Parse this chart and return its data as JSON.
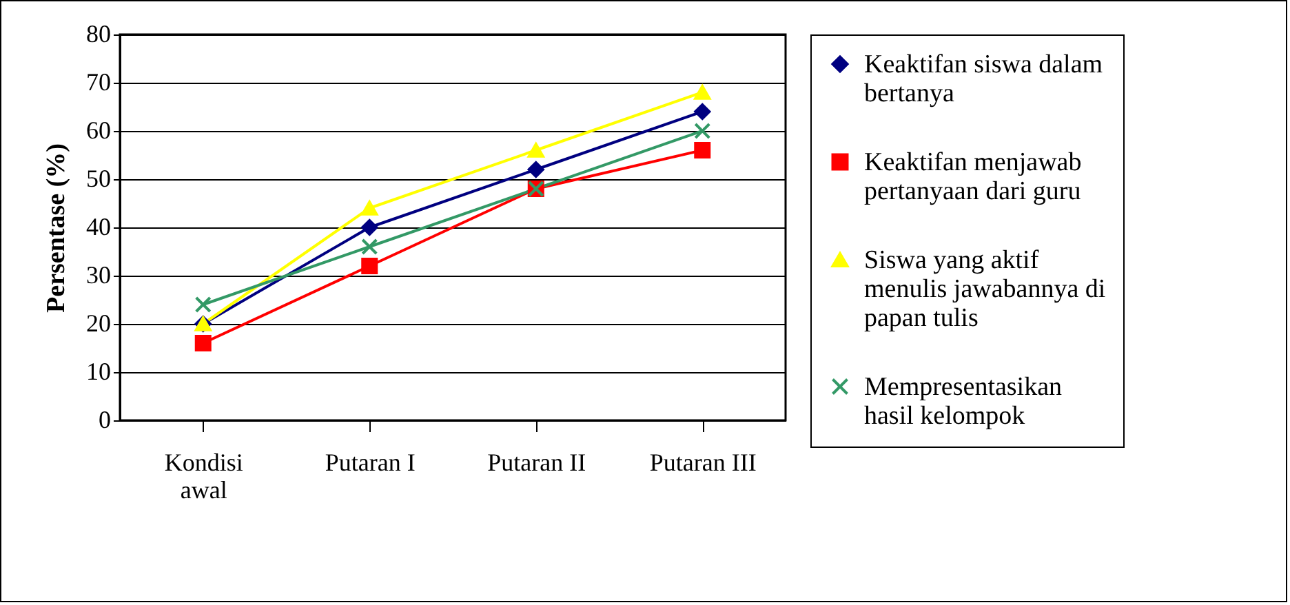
{
  "chart_data": {
    "type": "line",
    "ylabel": "Persentase (%)",
    "categories": [
      "Kondisi awal",
      "Putaran I",
      "Putaran II",
      "Putaran III"
    ],
    "series": [
      {
        "name": "Keaktifan siswa dalam bertanya",
        "color": "#000080",
        "marker": "diamond",
        "values": [
          20,
          40,
          52,
          64
        ]
      },
      {
        "name": "Keaktifan menjawab pertanyaan dari guru",
        "color": "#ff0000",
        "marker": "square",
        "values": [
          16,
          32,
          48,
          56
        ]
      },
      {
        "name": "Siswa yang aktif menulis jawabannya di papan tulis",
        "color": "#ffff00",
        "marker": "triangle",
        "values": [
          20,
          44,
          56,
          68
        ]
      },
      {
        "name": "Mempresentasikan hasil kelompok",
        "color": "#339966",
        "marker": "cross",
        "values": [
          24,
          36,
          48,
          60
        ]
      }
    ],
    "ylim": [
      0,
      80
    ],
    "yticks": [
      0,
      10,
      20,
      30,
      40,
      50,
      60,
      70,
      80
    ],
    "grid": "y",
    "legend": "right"
  }
}
